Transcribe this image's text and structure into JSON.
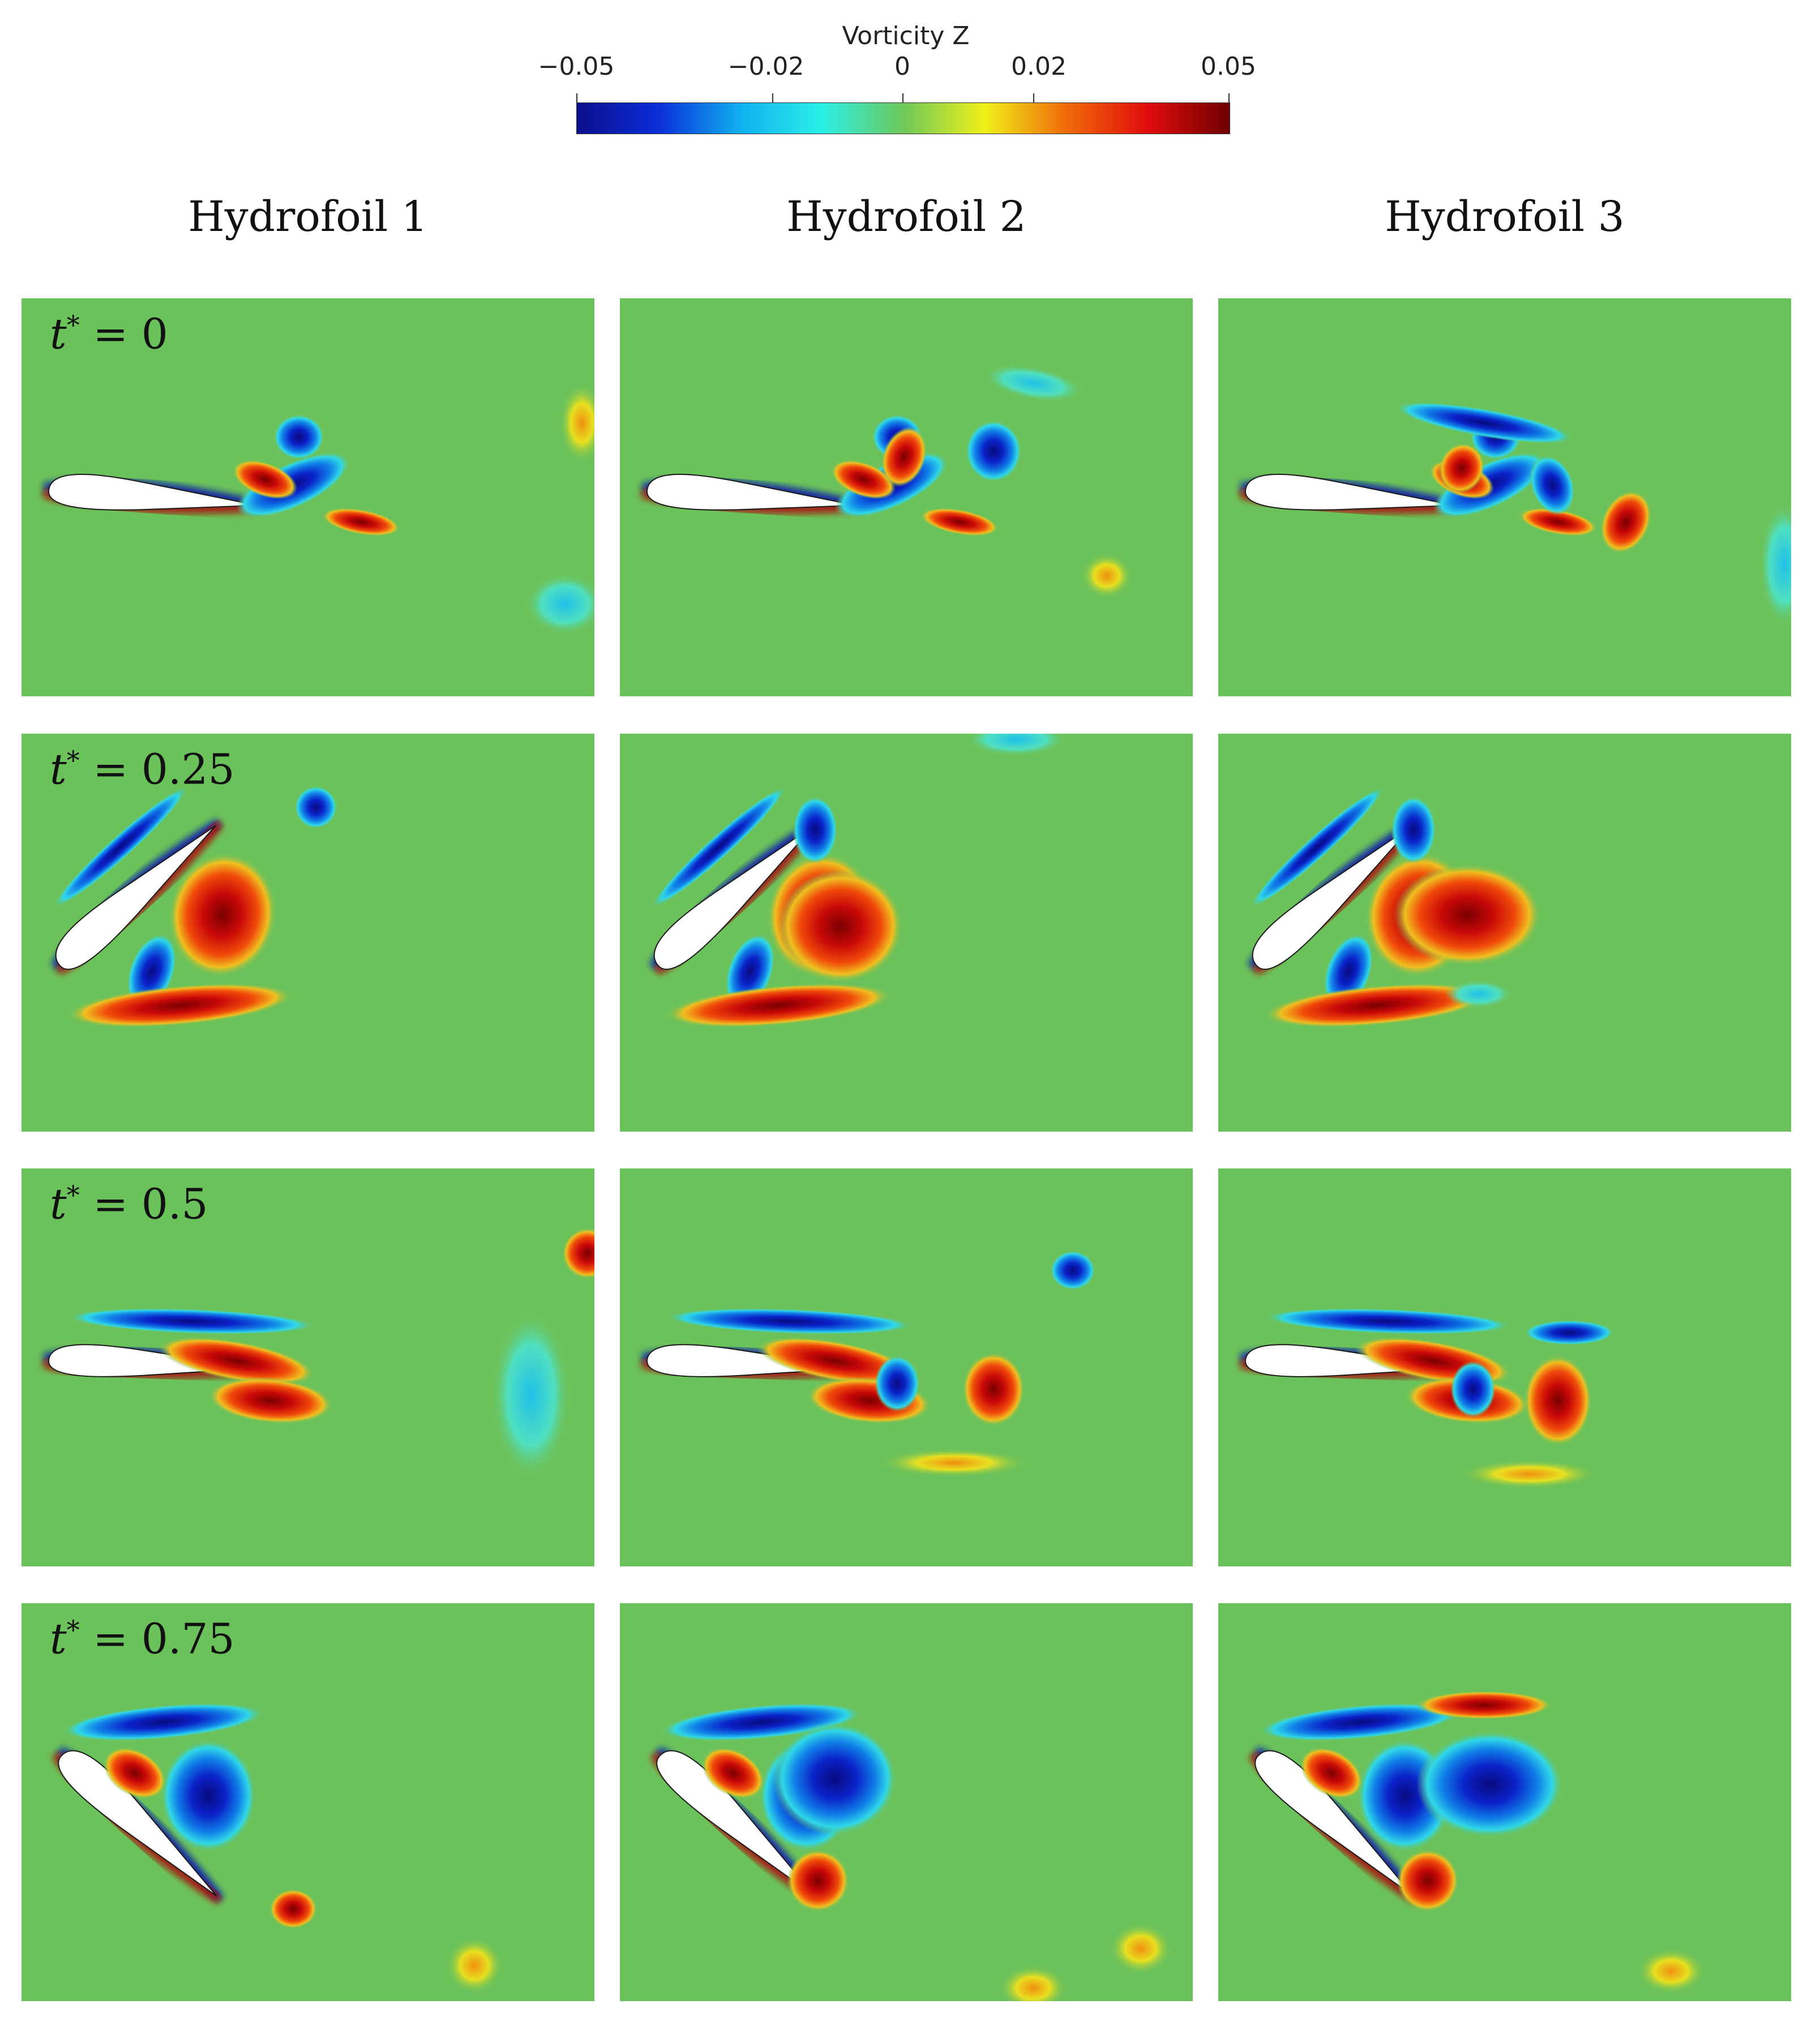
{
  "colorbar": {
    "title": "Vorticity Z",
    "ticks": [
      "−0.05",
      "−0.02",
      "0",
      "0.02",
      "0.05"
    ],
    "tick_values": [
      -0.05,
      -0.02,
      0,
      0.02,
      0.05
    ],
    "range": [
      -0.05,
      0.05
    ],
    "colors": [
      "#0a0f8c",
      "#0a2ed8",
      "#10b0f0",
      "#2af0e8",
      "#6ec85a",
      "#f0f01a",
      "#f06a0a",
      "#e00c0c",
      "#6e0000"
    ]
  },
  "columns": [
    "Hydrofoil 1",
    "Hydrofoil 2",
    "Hydrofoil 3"
  ],
  "rows": [
    {
      "var": "t",
      "sup": "*",
      "eq": " = 0",
      "time": 0
    },
    {
      "var": "t",
      "sup": "*",
      "eq": " = 0.25",
      "time": 0.25
    },
    {
      "var": "t",
      "sup": "*",
      "eq": " = 0.5",
      "time": 0.5
    },
    {
      "var": "t",
      "sup": "*",
      "eq": " = 0.75",
      "time": 0.75
    }
  ],
  "background_color": "#6cc25a"
}
